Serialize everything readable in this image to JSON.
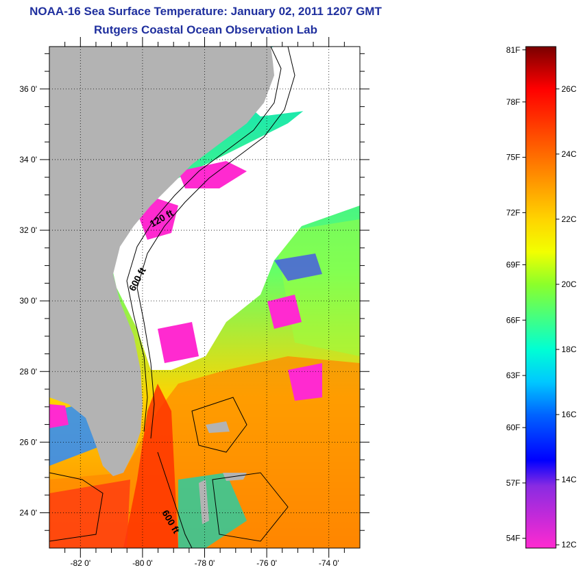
{
  "title": "NOAA-16 Sea Surface Temperature:  January 02, 2011 1207 GMT",
  "subtitle": "Rutgers Coastal Ocean Observation Lab",
  "map": {
    "lat_range": [
      23.0,
      37.2
    ],
    "lon_range": [
      -83.0,
      -73.0
    ],
    "lat_ticks": [
      {
        "value": 36,
        "label": "36 0'"
      },
      {
        "value": 34,
        "label": "34 0'"
      },
      {
        "value": 32,
        "label": "32 0'"
      },
      {
        "value": 30,
        "label": "30 0'"
      },
      {
        "value": 28,
        "label": "28 0'"
      },
      {
        "value": 26,
        "label": "26 0'"
      },
      {
        "value": 24,
        "label": "24 0'"
      }
    ],
    "lon_ticks": [
      {
        "value": -82,
        "label": "-82 0'"
      },
      {
        "value": -80,
        "label": "-80 0'"
      },
      {
        "value": -78,
        "label": "-78 0'"
      },
      {
        "value": -76,
        "label": "-76 0'"
      },
      {
        "value": -74,
        "label": "-74 0'"
      }
    ],
    "depth_labels": [
      {
        "text": "120 ft"
      },
      {
        "text": "600 ft"
      },
      {
        "text": "600 ft"
      }
    ],
    "colors": {
      "land": "#b3b3b3",
      "cloud": "#ffffff",
      "contour": "#000000"
    }
  },
  "colorbar": {
    "range_c": [
      11.9,
      27.3
    ],
    "fahrenheit_labels": [
      {
        "value_c": 27.2,
        "label": "81F"
      },
      {
        "value_c": 25.6,
        "label": "78F"
      },
      {
        "value_c": 23.9,
        "label": "75F"
      },
      {
        "value_c": 22.2,
        "label": "72F"
      },
      {
        "value_c": 20.6,
        "label": "69F"
      },
      {
        "value_c": 18.9,
        "label": "66F"
      },
      {
        "value_c": 17.2,
        "label": "63F"
      },
      {
        "value_c": 15.6,
        "label": "60F"
      },
      {
        "value_c": 13.9,
        "label": "57F"
      },
      {
        "value_c": 12.2,
        "label": "54F"
      }
    ],
    "celsius_labels": [
      {
        "value_c": 26,
        "label": "26C"
      },
      {
        "value_c": 24,
        "label": "24C"
      },
      {
        "value_c": 22,
        "label": "22C"
      },
      {
        "value_c": 20,
        "label": "20C"
      },
      {
        "value_c": 18,
        "label": "18C"
      },
      {
        "value_c": 16,
        "label": "16C"
      },
      {
        "value_c": 14,
        "label": "14C"
      },
      {
        "value_c": 12,
        "label": "12C"
      }
    ],
    "stops": [
      {
        "value_c": 27.3,
        "color": "#7a0000"
      },
      {
        "value_c": 26.0,
        "color": "#ff0000"
      },
      {
        "value_c": 24.0,
        "color": "#ff6a00"
      },
      {
        "value_c": 22.0,
        "color": "#ffd400"
      },
      {
        "value_c": 21.0,
        "color": "#f2ff00"
      },
      {
        "value_c": 20.0,
        "color": "#8cff2a"
      },
      {
        "value_c": 18.0,
        "color": "#00ffd4"
      },
      {
        "value_c": 17.0,
        "color": "#00c8ff"
      },
      {
        "value_c": 16.0,
        "color": "#0064ff"
      },
      {
        "value_c": 14.6,
        "color": "#0000ff"
      },
      {
        "value_c": 13.8,
        "color": "#8a2be2"
      },
      {
        "value_c": 11.9,
        "color": "#ff2ad0"
      }
    ]
  }
}
